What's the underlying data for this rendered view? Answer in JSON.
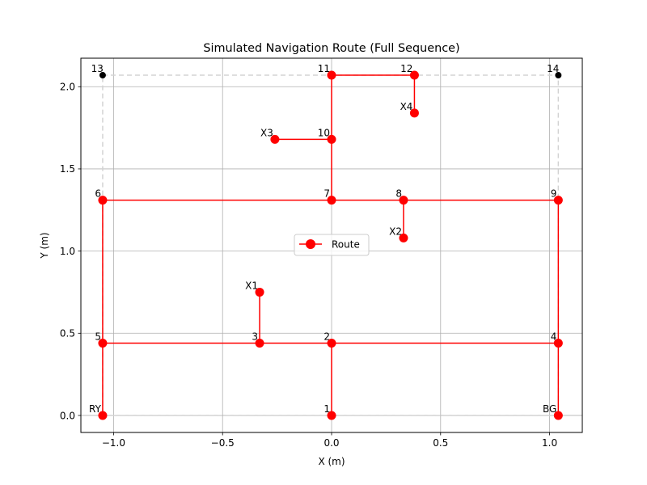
{
  "chart_data": {
    "type": "line",
    "title": "Simulated Navigation Route (Full Sequence)",
    "xlabel": "X (m)",
    "ylabel": "Y (m)",
    "xlim": [
      -1.15,
      1.15
    ],
    "ylim": [
      -0.1035,
      2.1735
    ],
    "xticks": [
      -1.0,
      -0.5,
      0.0,
      0.5,
      1.0
    ],
    "xtick_labels": [
      "−1.0",
      "−0.5",
      "0.0",
      "0.5",
      "1.0"
    ],
    "yticks": [
      0.0,
      0.5,
      1.0,
      1.5,
      2.0
    ],
    "ytick_labels": [
      "0.0",
      "0.5",
      "1.0",
      "1.5",
      "2.0"
    ],
    "grid": true,
    "legend_position": "center",
    "colors": {
      "route": "#ff0000",
      "boundary": "#d3d3d3",
      "corner": "#000000",
      "grid": "#b0b0b0"
    },
    "boundary": {
      "x": [
        -1.05,
        1.04,
        1.04,
        -1.05,
        -1.05
      ],
      "y": [
        2.07,
        2.07,
        0.0,
        0.0,
        2.07
      ]
    },
    "corner_points": [
      {
        "label": "13",
        "x": -1.05,
        "y": 2.07
      },
      {
        "label": "14",
        "x": 1.04,
        "y": 2.07
      }
    ],
    "points": [
      {
        "label": "RY",
        "x": -1.05,
        "y": 0.0
      },
      {
        "label": "1",
        "x": 0.0,
        "y": 0.0
      },
      {
        "label": "BG",
        "x": 1.04,
        "y": 0.0
      },
      {
        "label": "2",
        "x": 0.0,
        "y": 0.44
      },
      {
        "label": "3",
        "x": -0.33,
        "y": 0.44
      },
      {
        "label": "4",
        "x": 1.04,
        "y": 0.44
      },
      {
        "label": "5",
        "x": -1.05,
        "y": 0.44
      },
      {
        "label": "X1",
        "x": -0.33,
        "y": 0.75
      },
      {
        "label": "X2",
        "x": 0.33,
        "y": 1.08
      },
      {
        "label": "6",
        "x": -1.05,
        "y": 1.31
      },
      {
        "label": "7",
        "x": 0.0,
        "y": 1.31
      },
      {
        "label": "8",
        "x": 0.33,
        "y": 1.31
      },
      {
        "label": "9",
        "x": 1.04,
        "y": 1.31
      },
      {
        "label": "X3",
        "x": -0.26,
        "y": 1.68
      },
      {
        "label": "10",
        "x": 0.0,
        "y": 1.68
      },
      {
        "label": "X4",
        "x": 0.38,
        "y": 1.84
      },
      {
        "label": "11",
        "x": 0.0,
        "y": 2.07
      },
      {
        "label": "12",
        "x": 0.38,
        "y": 2.07
      }
    ],
    "route_segments": [
      [
        [
          0.0,
          0.0
        ],
        [
          0.0,
          0.44
        ]
      ],
      [
        [
          -1.05,
          0.44
        ],
        [
          1.04,
          0.44
        ]
      ],
      [
        [
          -1.05,
          0.0
        ],
        [
          -1.05,
          1.31
        ]
      ],
      [
        [
          1.04,
          0.0
        ],
        [
          1.04,
          1.31
        ]
      ],
      [
        [
          -0.33,
          0.44
        ],
        [
          -0.33,
          0.75
        ]
      ],
      [
        [
          -1.05,
          1.31
        ],
        [
          1.04,
          1.31
        ]
      ],
      [
        [
          0.33,
          1.08
        ],
        [
          0.33,
          1.31
        ]
      ],
      [
        [
          0.0,
          1.31
        ],
        [
          0.0,
          2.07
        ]
      ],
      [
        [
          -0.26,
          1.68
        ],
        [
          0.0,
          1.68
        ]
      ],
      [
        [
          0.0,
          2.07
        ],
        [
          0.38,
          2.07
        ]
      ],
      [
        [
          0.38,
          2.07
        ],
        [
          0.38,
          1.84
        ]
      ]
    ],
    "series": [
      {
        "name": "Route",
        "color": "#ff0000",
        "marker": "circle"
      }
    ]
  }
}
